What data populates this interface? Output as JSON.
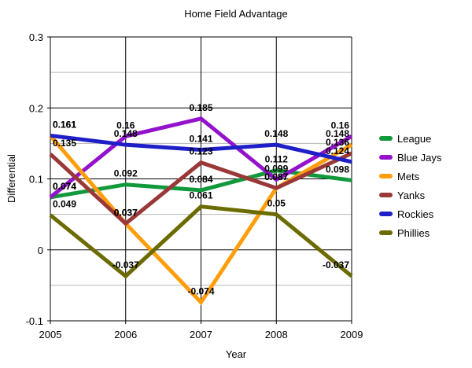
{
  "chart_data": {
    "type": "line",
    "title": "Home Field Advantage",
    "xlabel": "Year",
    "ylabel": "Differential",
    "categories": [
      "2005",
      "2006",
      "2007",
      "2008",
      "2009"
    ],
    "ylim": [
      -0.1,
      0.3
    ],
    "yticks": [
      -0.1,
      0,
      0.1,
      0.2,
      0.3
    ],
    "ytick_labels": [
      "-0.1",
      "0",
      "0.1",
      "0.2",
      "0.3"
    ],
    "minor_gridlines": [
      -0.05,
      0.05,
      0.15,
      0.25
    ],
    "grid": true,
    "legend_position": "right",
    "data_labels": true,
    "series": [
      {
        "name": "League",
        "color": "#12993c",
        "values": [
          0.074,
          0.092,
          0.084,
          0.112,
          0.098
        ]
      },
      {
        "name": "Blue Jays",
        "color": "#9412cc",
        "values": [
          0.074,
          0.16,
          0.185,
          0.099,
          0.16
        ]
      },
      {
        "name": "Mets",
        "color": "#ff9e0c",
        "values": [
          0.161,
          0.037,
          -0.074,
          0.087,
          0.148
        ]
      },
      {
        "name": "Yanks",
        "color": "#9a3838",
        "values": [
          0.135,
          0.037,
          0.123,
          0.087,
          0.136
        ]
      },
      {
        "name": "Rockies",
        "color": "#1f1fc8",
        "values": [
          0.161,
          0.148,
          0.141,
          0.148,
          0.124
        ]
      },
      {
        "name": "Phillies",
        "color": "#6b6b00",
        "values": [
          0.049,
          -0.037,
          0.061,
          0.05,
          -0.037
        ]
      }
    ]
  }
}
